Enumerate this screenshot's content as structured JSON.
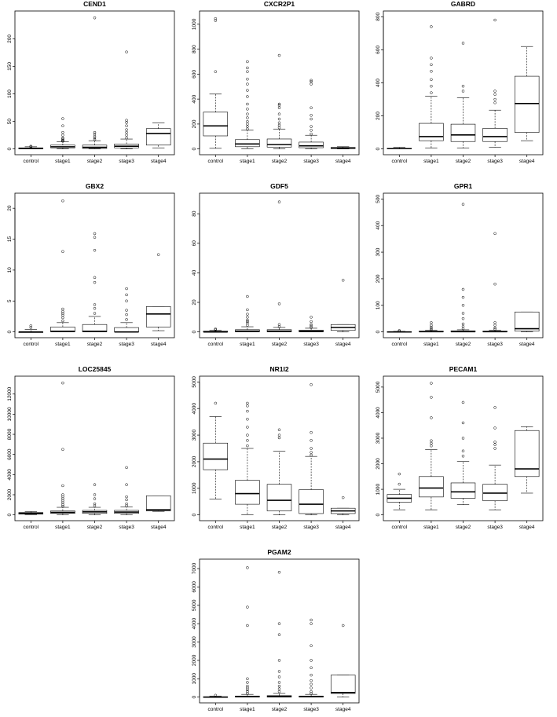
{
  "chart_data": [
    {
      "type": "boxplot",
      "title": "CEND1",
      "categories": [
        "control",
        "stage1",
        "stage2",
        "stage3",
        "stage4"
      ],
      "ylim": [
        0,
        240
      ],
      "yticks": [
        0,
        50,
        100,
        150,
        200
      ],
      "boxes": [
        {
          "min": 0,
          "q1": 0,
          "median": 1,
          "q3": 2,
          "max": 4,
          "outliers": [
            4,
            5
          ]
        },
        {
          "min": 0,
          "q1": 2,
          "median": 4,
          "q3": 7,
          "max": 13,
          "outliers": [
            14,
            15,
            16,
            18,
            20,
            25,
            30,
            42,
            55
          ]
        },
        {
          "min": 0,
          "q1": 1,
          "median": 3,
          "q3": 7,
          "max": 15,
          "outliers": [
            17,
            20,
            23,
            27,
            30,
            238
          ]
        },
        {
          "min": 0,
          "q1": 2,
          "median": 5,
          "q3": 9,
          "max": 18,
          "outliers": [
            20,
            25,
            30,
            35,
            42,
            48,
            52,
            176
          ]
        },
        {
          "min": 2,
          "q1": 7,
          "median": 28,
          "q3": 37,
          "max": 47,
          "outliers": []
        }
      ]
    },
    {
      "type": "boxplot",
      "title": "CXCR2P1",
      "categories": [
        "control",
        "stage1",
        "stage2",
        "stage3",
        "stage4"
      ],
      "ylim": [
        0,
        1060
      ],
      "yticks": [
        0,
        200,
        400,
        600,
        800,
        1000
      ],
      "boxes": [
        {
          "min": 5,
          "q1": 105,
          "median": 185,
          "q3": 295,
          "max": 440,
          "outliers": [
            620,
            1030,
            1045
          ]
        },
        {
          "min": 0,
          "q1": 18,
          "median": 40,
          "q3": 75,
          "max": 150,
          "outliers": [
            160,
            180,
            200,
            220,
            250,
            280,
            320,
            360,
            420,
            470,
            520,
            560,
            620,
            650,
            700
          ]
        },
        {
          "min": 0,
          "q1": 15,
          "median": 35,
          "q3": 80,
          "max": 160,
          "outliers": [
            170,
            190,
            210,
            240,
            280,
            330,
            350,
            360,
            750
          ]
        },
        {
          "min": 0,
          "q1": 10,
          "median": 25,
          "q3": 55,
          "max": 110,
          "outliers": [
            120,
            150,
            180,
            240,
            270,
            330,
            520,
            540,
            550
          ]
        },
        {
          "min": 0,
          "q1": 3,
          "median": 8,
          "q3": 12,
          "max": 18,
          "outliers": []
        }
      ]
    },
    {
      "type": "boxplot",
      "title": "GABRD",
      "categories": [
        "control",
        "stage1",
        "stage2",
        "stage3",
        "stage4"
      ],
      "ylim": [
        0,
        800
      ],
      "yticks": [
        0,
        200,
        400,
        600,
        800
      ],
      "boxes": [
        {
          "min": 0,
          "q1": 0,
          "median": 2,
          "q3": 4,
          "max": 10,
          "outliers": []
        },
        {
          "min": 5,
          "q1": 50,
          "median": 75,
          "q3": 155,
          "max": 320,
          "outliers": [
            340,
            380,
            420,
            470,
            510,
            550,
            740
          ]
        },
        {
          "min": 5,
          "q1": 45,
          "median": 85,
          "q3": 150,
          "max": 310,
          "outliers": [
            350,
            380,
            640
          ]
        },
        {
          "min": 10,
          "q1": 45,
          "median": 75,
          "q3": 125,
          "max": 235,
          "outliers": [
            280,
            300,
            330,
            350,
            780
          ]
        },
        {
          "min": 50,
          "q1": 100,
          "median": 275,
          "q3": 440,
          "max": 620,
          "outliers": []
        }
      ]
    },
    {
      "type": "boxplot",
      "title": "GBX2",
      "categories": [
        "control",
        "stage1",
        "stage2",
        "stage3",
        "stage4"
      ],
      "ylim": [
        0,
        21.5
      ],
      "yticks": [
        0,
        5,
        10,
        15,
        20
      ],
      "boxes": [
        {
          "min": 0,
          "q1": 0,
          "median": 0,
          "q3": 0,
          "max": 0.4,
          "outliers": [
            0.7,
            1.0
          ]
        },
        {
          "min": 0,
          "q1": 0,
          "median": 0.1,
          "q3": 0.8,
          "max": 1.5,
          "outliers": [
            1.8,
            2.3,
            2.7,
            3.0,
            3.3,
            3.7,
            13.0,
            21.2
          ]
        },
        {
          "min": 0,
          "q1": 0,
          "median": 0.1,
          "q3": 1.2,
          "max": 2.5,
          "outliers": [
            3.0,
            3.8,
            4.4,
            8.0,
            8.8,
            13.2,
            15.3,
            15.9
          ]
        },
        {
          "min": 0,
          "q1": 0,
          "median": 0,
          "q3": 0.7,
          "max": 1.5,
          "outliers": [
            2.0,
            2.8,
            3.5,
            5.0,
            6.0,
            7.0
          ]
        },
        {
          "min": 0.2,
          "q1": 0.8,
          "median": 2.9,
          "q3": 4.1,
          "max": 4.1,
          "outliers": [
            12.5
          ]
        }
      ]
    },
    {
      "type": "boxplot",
      "title": "GDF5",
      "categories": [
        "control",
        "stage1",
        "stage2",
        "stage3",
        "stage4"
      ],
      "ylim": [
        0,
        90
      ],
      "yticks": [
        0,
        20,
        40,
        60,
        80
      ],
      "boxes": [
        {
          "min": 0,
          "q1": 0,
          "median": 0,
          "q3": 0.5,
          "max": 1,
          "outliers": [
            1.5,
            2
          ]
        },
        {
          "min": 0,
          "q1": 0,
          "median": 0.5,
          "q3": 1.5,
          "max": 3.5,
          "outliers": [
            4.5,
            6,
            7,
            8,
            10,
            12,
            15,
            24
          ]
        },
        {
          "min": 0,
          "q1": 0,
          "median": 0.5,
          "q3": 1.5,
          "max": 3,
          "outliers": [
            3.5,
            5,
            19,
            88
          ]
        },
        {
          "min": 0,
          "q1": 0,
          "median": 0.5,
          "q3": 1.2,
          "max": 2.5,
          "outliers": [
            3,
            4,
            5,
            7,
            10
          ]
        },
        {
          "min": 0,
          "q1": 1,
          "median": 3,
          "q3": 5,
          "max": 5,
          "outliers": [
            35
          ]
        }
      ]
    },
    {
      "type": "boxplot",
      "title": "GPR1",
      "categories": [
        "control",
        "stage1",
        "stage2",
        "stage3",
        "stage4"
      ],
      "ylim": [
        0,
        500
      ],
      "yticks": [
        0,
        100,
        200,
        300,
        400,
        500
      ],
      "boxes": [
        {
          "min": 0,
          "q1": 0,
          "median": 0,
          "q3": 1,
          "max": 2,
          "outliers": [
            3,
            5
          ]
        },
        {
          "min": 0,
          "q1": 0,
          "median": 1,
          "q3": 3,
          "max": 6,
          "outliers": [
            8,
            12,
            18,
            25,
            35
          ]
        },
        {
          "min": 0,
          "q1": 0,
          "median": 1,
          "q3": 4,
          "max": 8,
          "outliers": [
            12,
            20,
            30,
            50,
            70,
            100,
            130,
            160,
            480
          ]
        },
        {
          "min": 0,
          "q1": 0,
          "median": 1,
          "q3": 3,
          "max": 6,
          "outliers": [
            10,
            15,
            25,
            35,
            180,
            370
          ]
        },
        {
          "min": 0,
          "q1": 3,
          "median": 12,
          "q3": 75,
          "max": 75,
          "outliers": []
        }
      ]
    },
    {
      "type": "boxplot",
      "title": "LOC25845",
      "categories": [
        "control",
        "stage1",
        "stage2",
        "stage3",
        "stage4"
      ],
      "ylim": [
        0,
        13200
      ],
      "yticks": [
        0,
        2000,
        4000,
        6000,
        8000,
        10000,
        12000
      ],
      "boxes": [
        {
          "min": 30,
          "q1": 80,
          "median": 150,
          "q3": 230,
          "max": 330,
          "outliers": []
        },
        {
          "min": 0,
          "q1": 150,
          "median": 250,
          "q3": 400,
          "max": 750,
          "outliers": [
            850,
            1000,
            1200,
            1400,
            1600,
            1800,
            2000,
            2900,
            6500,
            13100
          ]
        },
        {
          "min": 0,
          "q1": 150,
          "median": 300,
          "q3": 450,
          "max": 750,
          "outliers": [
            900,
            1100,
            1600,
            2000,
            3000
          ]
        },
        {
          "min": 0,
          "q1": 150,
          "median": 280,
          "q3": 450,
          "max": 800,
          "outliers": [
            900,
            1100,
            1500,
            1800,
            3000,
            4700
          ]
        },
        {
          "min": 350,
          "q1": 400,
          "median": 500,
          "q3": 1900,
          "max": 1900,
          "outliers": []
        }
      ]
    },
    {
      "type": "boxplot",
      "title": "NR1I2",
      "categories": [
        "control",
        "stage1",
        "stage2",
        "stage3",
        "stage4"
      ],
      "ylim": [
        0,
        5000
      ],
      "yticks": [
        0,
        1000,
        2000,
        3000,
        4000,
        5000
      ],
      "boxes": [
        {
          "min": 600,
          "q1": 1700,
          "median": 2100,
          "q3": 2700,
          "max": 3700,
          "outliers": [
            4200
          ]
        },
        {
          "min": 0,
          "q1": 400,
          "median": 800,
          "q3": 1300,
          "max": 2500,
          "outliers": [
            2600,
            2800,
            3000,
            3300,
            3600,
            3900,
            4100,
            4200
          ]
        },
        {
          "min": 0,
          "q1": 150,
          "median": 550,
          "q3": 1150,
          "max": 2400,
          "outliers": [
            2900,
            3000,
            3200
          ]
        },
        {
          "min": 0,
          "q1": 50,
          "median": 400,
          "q3": 950,
          "max": 2200,
          "outliers": [
            2250,
            2350,
            2500,
            2800,
            3100,
            4900
          ]
        },
        {
          "min": 0,
          "q1": 50,
          "median": 150,
          "q3": 250,
          "max": 250,
          "outliers": [
            650
          ]
        }
      ]
    },
    {
      "type": "boxplot",
      "title": "PECAM1",
      "categories": [
        "control",
        "stage1",
        "stage2",
        "stage3",
        "stage4"
      ],
      "ylim": [
        0,
        5200
      ],
      "yticks": [
        0,
        1000,
        2000,
        3000,
        4000,
        5000
      ],
      "boxes": [
        {
          "min": 200,
          "q1": 500,
          "median": 650,
          "q3": 800,
          "max": 1000,
          "outliers": [
            1200,
            1600
          ]
        },
        {
          "min": 200,
          "q1": 700,
          "median": 1050,
          "q3": 1500,
          "max": 2550,
          "outliers": [
            2700,
            2800,
            2900,
            3800,
            4600,
            5150
          ]
        },
        {
          "min": 400,
          "q1": 650,
          "median": 900,
          "q3": 1250,
          "max": 2100,
          "outliers": [
            2300,
            2500,
            3000,
            3600,
            4400
          ]
        },
        {
          "min": 200,
          "q1": 550,
          "median": 850,
          "q3": 1200,
          "max": 1950,
          "outliers": [
            2600,
            2750,
            2850,
            3400,
            4200
          ]
        },
        {
          "min": 850,
          "q1": 1500,
          "median": 1800,
          "q3": 3300,
          "max": 3450,
          "outliers": []
        }
      ]
    },
    {
      "type": "boxplot",
      "title": "PGAM2",
      "categories": [
        "control",
        "stage1",
        "stage2",
        "stage3",
        "stage4"
      ],
      "ylim": [
        0,
        7200
      ],
      "yticks": [
        0,
        1000,
        2000,
        3000,
        4000,
        5000,
        6000,
        7000
      ],
      "boxes": [
        {
          "min": 0,
          "q1": 0,
          "median": 0,
          "q3": 20,
          "max": 60,
          "outliers": [
            100
          ]
        },
        {
          "min": 0,
          "q1": 0,
          "median": 20,
          "q3": 60,
          "max": 150,
          "outliers": [
            200,
            300,
            400,
            500,
            600,
            800,
            1000,
            3900,
            4900,
            7050
          ]
        },
        {
          "min": 0,
          "q1": 0,
          "median": 30,
          "q3": 80,
          "max": 200,
          "outliers": [
            300,
            450,
            600,
            800,
            1100,
            1400,
            2000,
            3400,
            4000,
            6800
          ]
        },
        {
          "min": 0,
          "q1": 0,
          "median": 20,
          "q3": 60,
          "max": 150,
          "outliers": [
            200,
            300,
            500,
            700,
            900,
            1200,
            1600,
            2000,
            2800,
            4000,
            4200
          ]
        },
        {
          "min": 0,
          "q1": 200,
          "median": 250,
          "q3": 1200,
          "max": 1200,
          "outliers": [
            3900
          ]
        }
      ]
    }
  ]
}
